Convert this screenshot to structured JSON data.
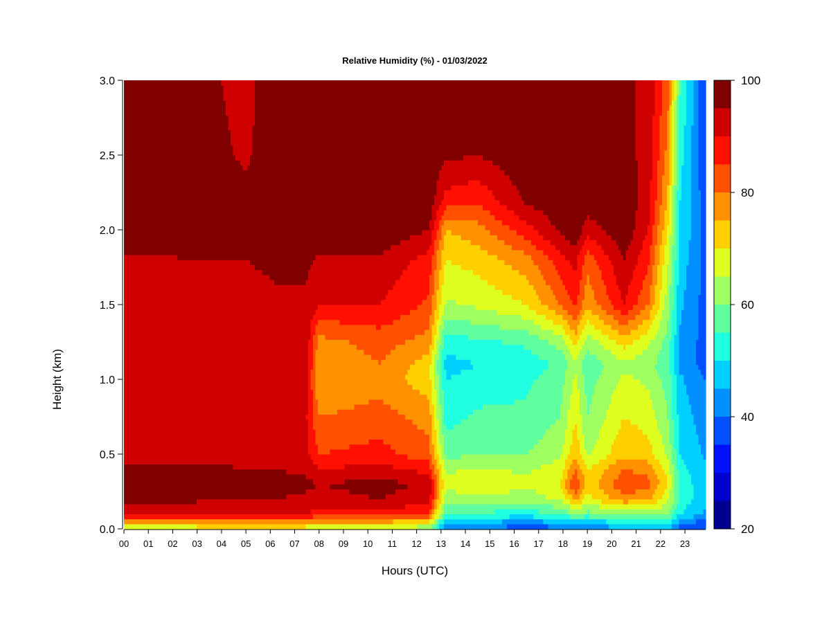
{
  "chart_data": {
    "type": "heatmap",
    "title": "Relative Humidity (%) - 01/03/2022",
    "xlabel": "Hours (UTC)",
    "ylabel": "Height (km)",
    "x_unit": "hours UTC",
    "y_unit": "km",
    "xlim": [
      0,
      23.85
    ],
    "ylim": [
      0,
      3.0
    ],
    "x_ticks": [
      "00",
      "01",
      "02",
      "03",
      "04",
      "05",
      "06",
      "07",
      "08",
      "09",
      "10",
      "11",
      "12",
      "13",
      "14",
      "15",
      "16",
      "17",
      "18",
      "19",
      "20",
      "21",
      "22",
      "23"
    ],
    "y_ticks": [
      "0.0",
      "0.5",
      "1.0",
      "1.5",
      "2.0",
      "2.5",
      "3.0"
    ],
    "colorbar": {
      "range": [
        20,
        100
      ],
      "ticks": [
        "20",
        "40",
        "60",
        "80",
        "100"
      ],
      "levels": [
        20,
        25,
        30,
        35,
        40,
        45,
        50,
        55,
        60,
        65,
        70,
        75,
        80,
        85,
        90,
        95,
        100
      ],
      "colors": [
        "#00008F",
        "#0000CF",
        "#0010FF",
        "#0050FF",
        "#0090FF",
        "#00D0FF",
        "#20FFDF",
        "#60FF9F",
        "#9FFF60",
        "#DFFF20",
        "#FFD000",
        "#FF9000",
        "#FF5000",
        "#FF1000",
        "#CF0000",
        "#800000"
      ]
    },
    "profiles": {
      "heights_km": [
        0.0,
        0.05,
        0.1,
        0.2,
        0.3,
        0.4,
        0.5,
        0.75,
        1.0,
        1.1,
        1.25,
        1.5,
        1.8,
        2.0,
        2.2,
        2.5,
        3.0
      ],
      "points": [
        {
          "hour": 0.0,
          "rh": [
            65,
            78,
            90,
            96,
            98,
            96,
            92,
            90,
            90,
            92,
            92,
            92,
            94,
            98,
            99,
            99,
            99
          ]
        },
        {
          "hour": 3.0,
          "rh": [
            66,
            78,
            90,
            96,
            99,
            97,
            93,
            91,
            91,
            92,
            93,
            93,
            95,
            98,
            99,
            98,
            97
          ]
        },
        {
          "hour": 5.0,
          "rh": [
            66,
            78,
            90,
            95,
            97,
            95,
            92,
            90,
            91,
            92,
            93,
            93,
            95,
            98,
            97,
            94,
            93
          ]
        },
        {
          "hour": 6.2,
          "rh": [
            66,
            78,
            90,
            95,
            97,
            95,
            92,
            91,
            92,
            93,
            94,
            94,
            96,
            99,
            99,
            99,
            99
          ]
        },
        {
          "hour": 7.5,
          "rh": [
            66,
            78,
            90,
            94,
            96,
            94,
            91,
            90,
            91,
            92,
            93,
            94,
            96,
            99,
            99,
            99,
            99
          ]
        },
        {
          "hour": 8.0,
          "rh": [
            64,
            76,
            88,
            93,
            95,
            90,
            85,
            80,
            75,
            75,
            78,
            90,
            94,
            99,
            99,
            99,
            99
          ]
        },
        {
          "hour": 10.5,
          "rh": [
            64,
            76,
            88,
            95,
            97,
            92,
            87,
            82,
            78,
            80,
            82,
            90,
            94,
            99,
            99,
            99,
            99
          ]
        },
        {
          "hour": 12.5,
          "rh": [
            60,
            72,
            85,
            92,
            94,
            88,
            82,
            78,
            72,
            72,
            78,
            84,
            88,
            95,
            99,
            99,
            99
          ]
        },
        {
          "hour": 13.2,
          "rh": [
            38,
            46,
            54,
            62,
            66,
            64,
            58,
            53,
            50,
            48,
            52,
            64,
            70,
            75,
            88,
            96,
            99
          ]
        },
        {
          "hour": 14.5,
          "rh": [
            40,
            46,
            54,
            64,
            70,
            66,
            60,
            56,
            52,
            50,
            54,
            66,
            72,
            78,
            86,
            95,
            99
          ]
        },
        {
          "hour": 16.5,
          "rh": [
            36,
            44,
            52,
            62,
            66,
            64,
            60,
            56,
            54,
            52,
            56,
            70,
            78,
            88,
            96,
            99,
            99
          ]
        },
        {
          "hour": 17.9,
          "rh": [
            38,
            46,
            56,
            66,
            70,
            68,
            64,
            60,
            58,
            56,
            62,
            80,
            88,
            96,
            99,
            99,
            99
          ]
        },
        {
          "hour": 18.5,
          "rh": [
            40,
            48,
            60,
            76,
            86,
            80,
            74,
            70,
            66,
            64,
            72,
            86,
            92,
            99,
            99,
            99,
            99
          ]
        },
        {
          "hour": 19.0,
          "rh": [
            40,
            48,
            58,
            68,
            72,
            70,
            64,
            60,
            58,
            56,
            62,
            76,
            82,
            92,
            99,
            99,
            99
          ]
        },
        {
          "hour": 20.5,
          "rh": [
            44,
            52,
            62,
            78,
            84,
            80,
            74,
            70,
            66,
            64,
            72,
            90,
            95,
            99,
            99,
            97,
            96
          ]
        },
        {
          "hour": 21.5,
          "rh": [
            44,
            52,
            62,
            76,
            82,
            78,
            72,
            68,
            64,
            62,
            66,
            80,
            86,
            90,
            92,
            93,
            94
          ]
        },
        {
          "hour": 22.3,
          "rh": [
            44,
            52,
            60,
            66,
            70,
            68,
            64,
            60,
            58,
            56,
            58,
            62,
            66,
            70,
            74,
            78,
            82
          ]
        },
        {
          "hour": 22.8,
          "rh": [
            38,
            44,
            50,
            54,
            54,
            52,
            50,
            48,
            46,
            44,
            44,
            46,
            48,
            50,
            50,
            52,
            56
          ]
        },
        {
          "hour": 23.85,
          "rh": [
            34,
            38,
            44,
            46,
            46,
            46,
            44,
            42,
            40,
            38,
            38,
            38,
            38,
            38,
            37,
            36,
            35
          ]
        }
      ]
    }
  }
}
